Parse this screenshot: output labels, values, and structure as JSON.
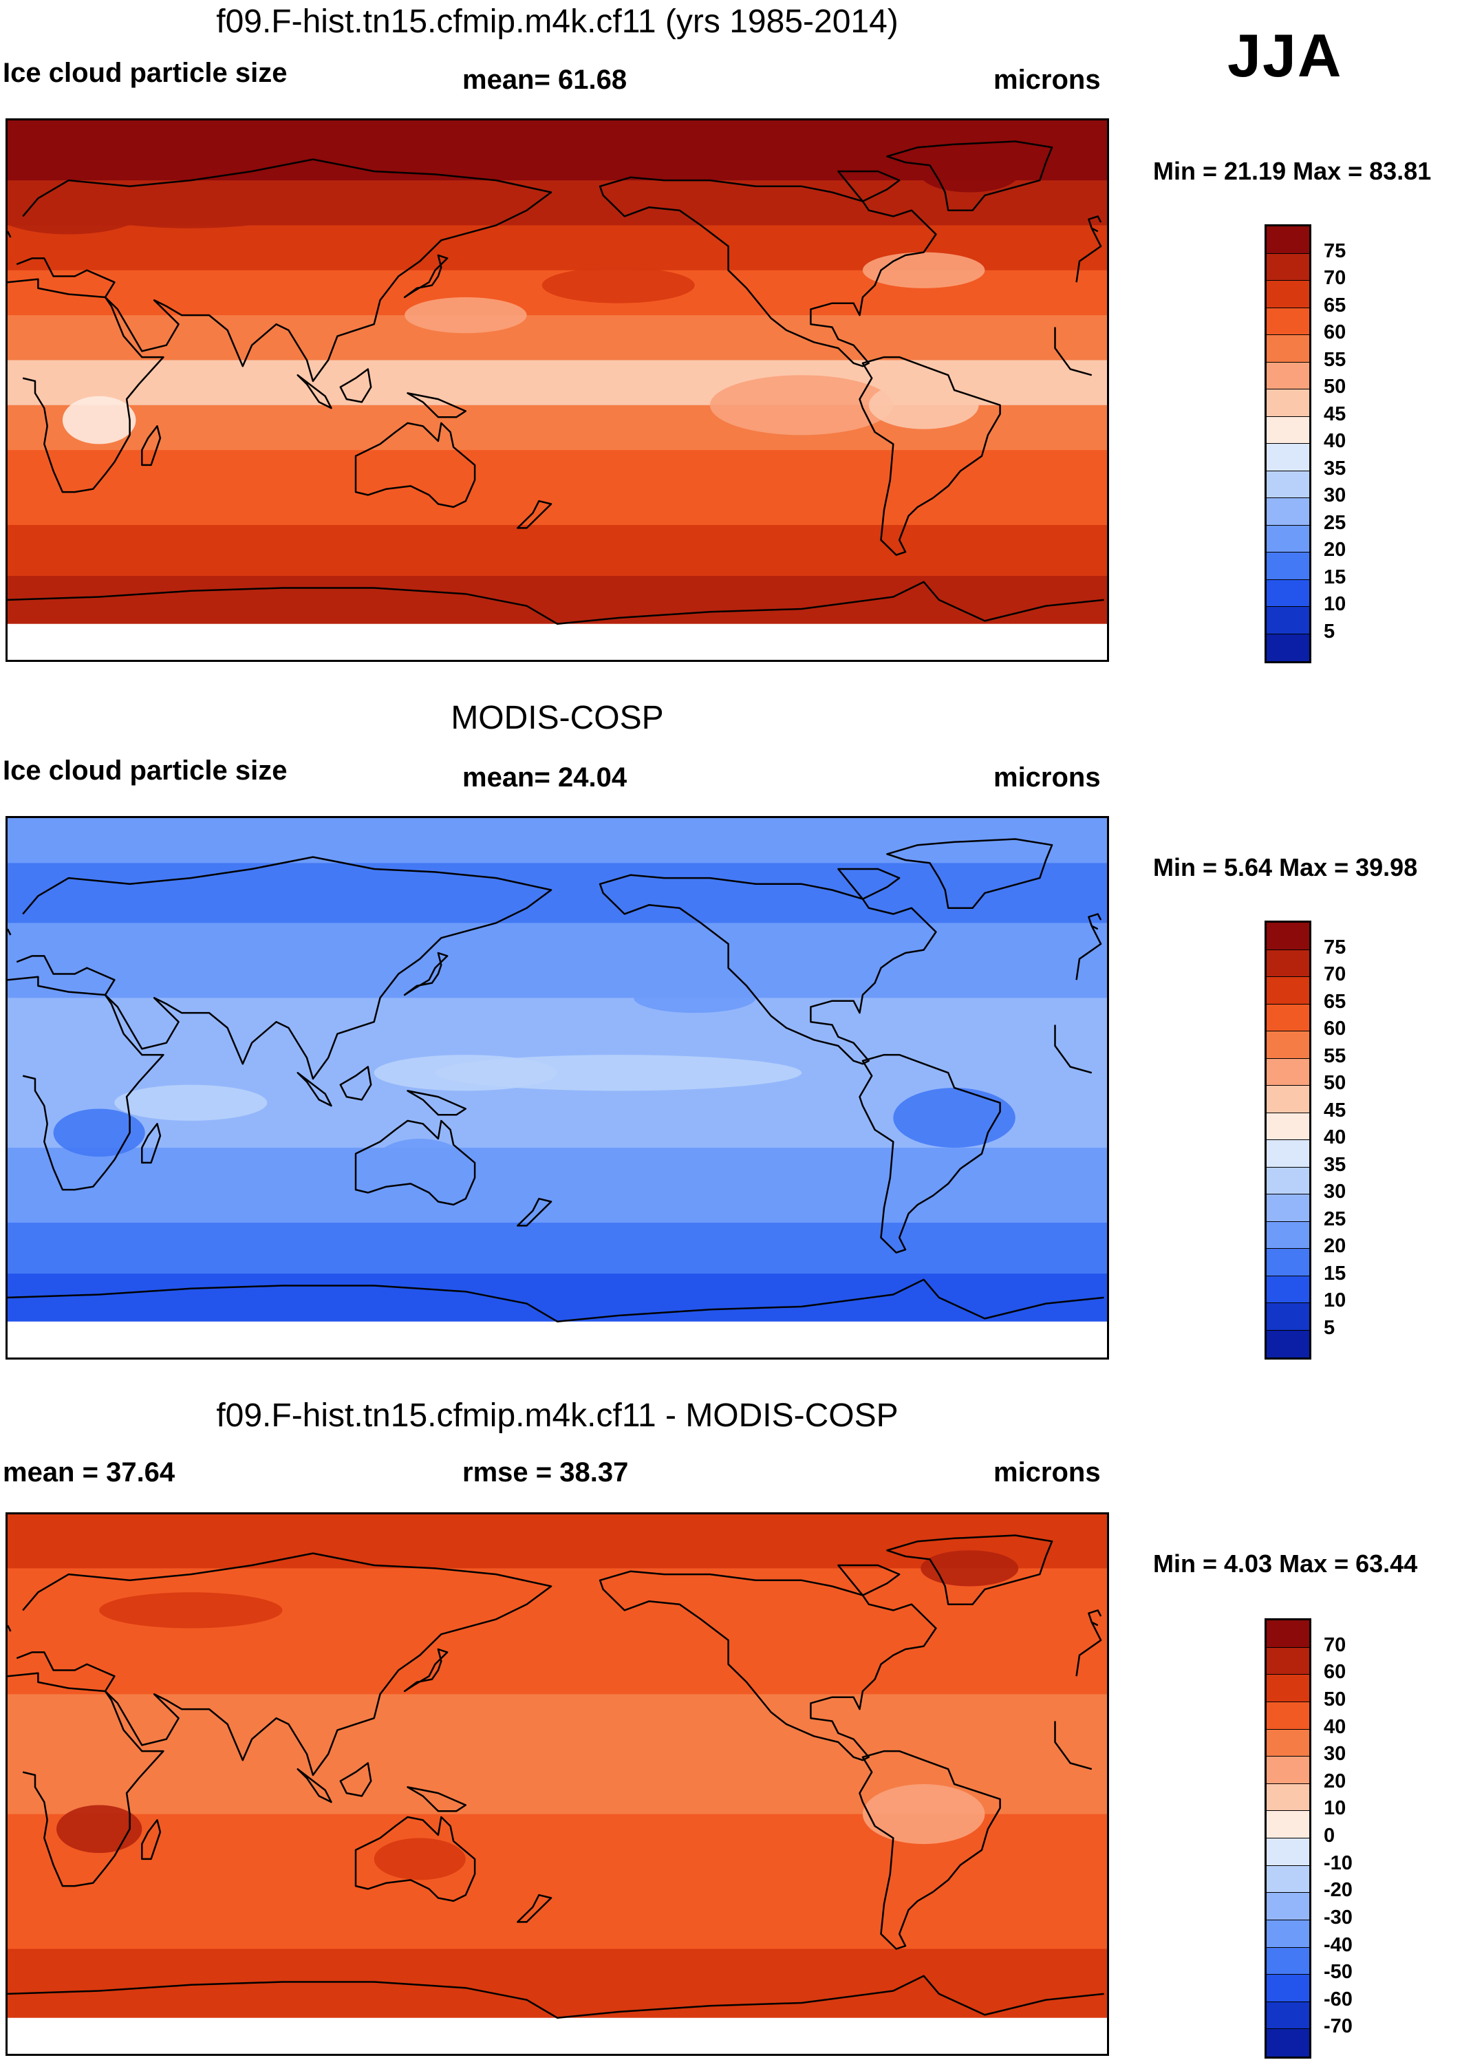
{
  "season": "JJA",
  "units": "microns",
  "colors": {
    "reds": [
      "#8c0a0a",
      "#b5230d",
      "#d8390f",
      "#f25a23",
      "#f57c45",
      "#f9a27b",
      "#fcc8ac",
      "#feebe0"
    ],
    "blues": [
      "#dbe8fb",
      "#b8d1fb",
      "#93b6fb",
      "#6d9bfa",
      "#4479f5",
      "#2355ec",
      "#1136c8",
      "#0a1fa6",
      "#040e80"
    ],
    "land_line": "#000000",
    "missing": "#ffffff"
  },
  "panels": [
    {
      "name": "model",
      "title": "f09.F-hist.tn15.cfmip.m4k.cf11 (yrs 1985-2014)",
      "left_label": "Ice cloud particle size",
      "center_label": "mean=  61.68",
      "right_label": "microns",
      "minmax": "Min =  21.19 Max =  83.81",
      "mean_value": 61.68,
      "min": 21.19,
      "max": 83.81,
      "field": "high",
      "colorbar_labels": [
        "75",
        "70",
        "65",
        "60",
        "55",
        "50",
        "45",
        "40",
        "35",
        "30",
        "25",
        "20",
        "15",
        "10",
        "5"
      ]
    },
    {
      "name": "obs",
      "title": "MODIS-COSP",
      "left_label": "Ice cloud particle size",
      "center_label": "mean=  24.04",
      "right_label": "microns",
      "minmax": "Min =   5.64 Max =  39.98",
      "mean_value": 24.04,
      "min": 5.64,
      "max": 39.98,
      "field": "low",
      "colorbar_labels": [
        "75",
        "70",
        "65",
        "60",
        "55",
        "50",
        "45",
        "40",
        "35",
        "30",
        "25",
        "20",
        "15",
        "10",
        "5"
      ]
    },
    {
      "name": "diff",
      "title": "f09.F-hist.tn15.cfmip.m4k.cf11 - MODIS-COSP",
      "left_label": "mean =  37.64",
      "center_label": "rmse =  38.37",
      "right_label": "microns",
      "minmax": "Min =   4.03 Max =  63.44",
      "mean_value": 37.64,
      "rmse": 38.37,
      "min": 4.03,
      "max": 63.44,
      "field": "diff",
      "colorbar_labels": [
        "70",
        "60",
        "50",
        "40",
        "30",
        "20",
        "10",
        "0",
        "-10",
        "-20",
        "-30",
        "-40",
        "-50",
        "-60",
        "-70"
      ]
    }
  ]
}
